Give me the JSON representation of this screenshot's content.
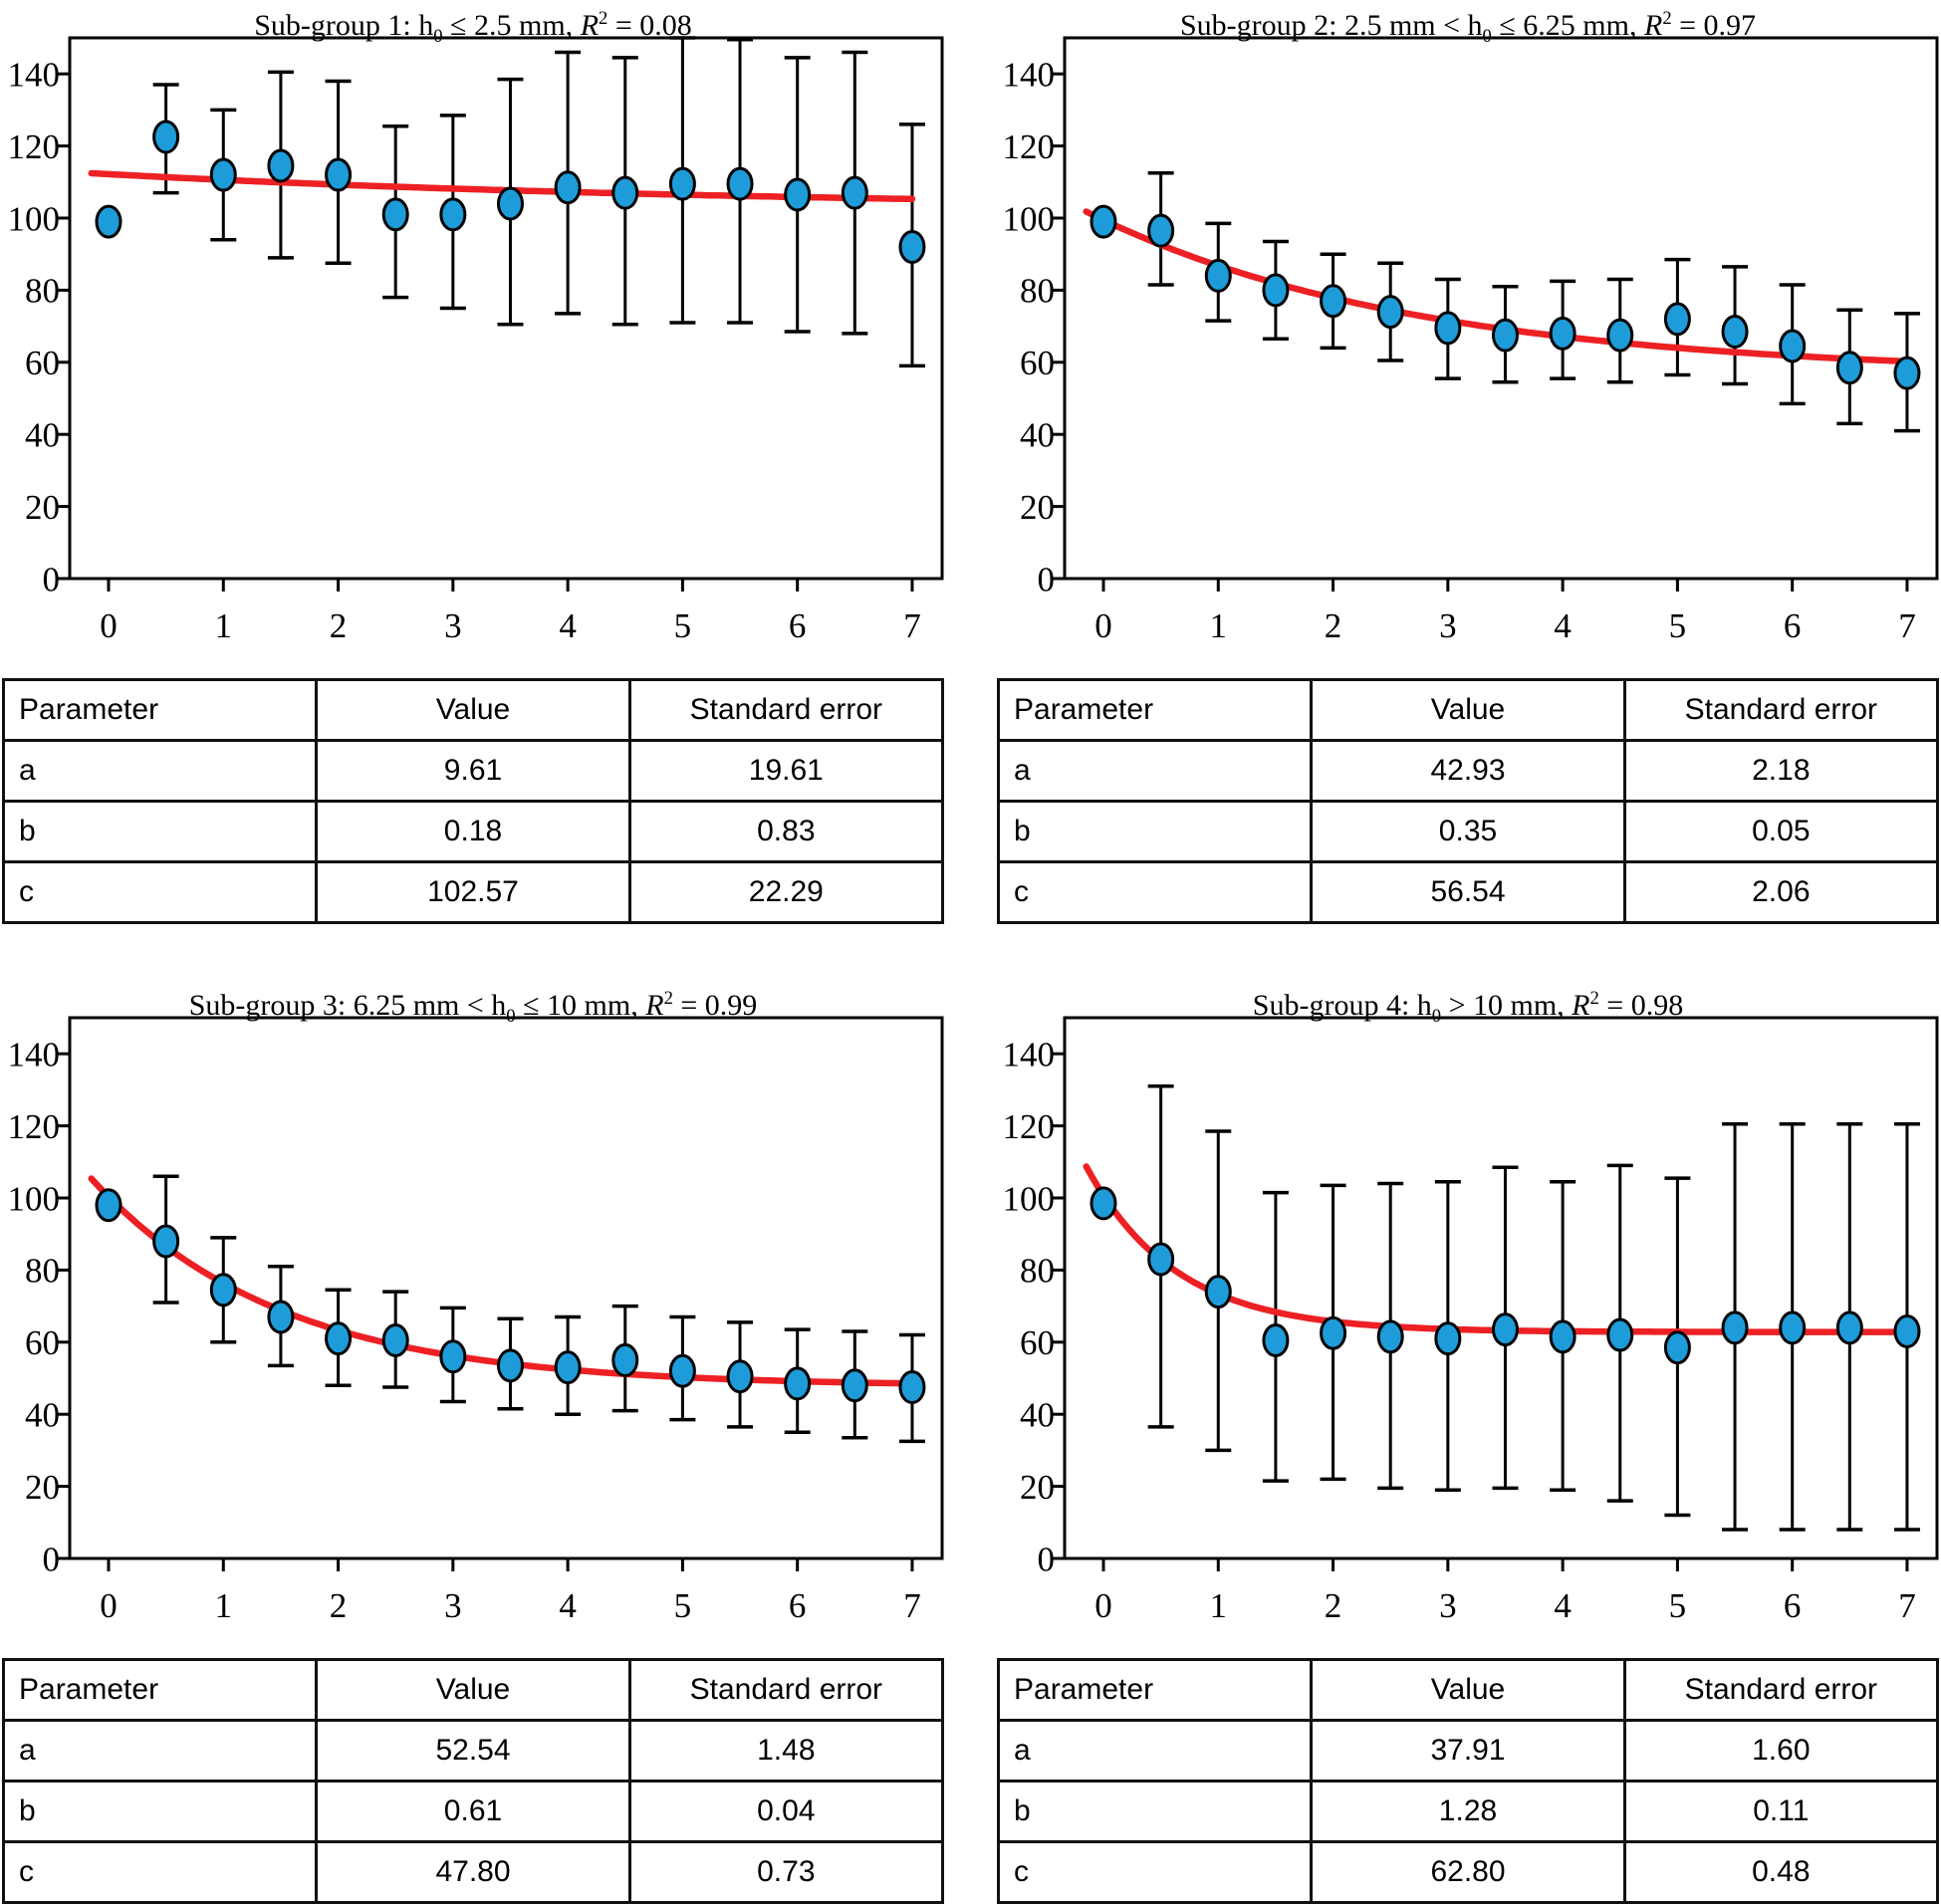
{
  "colors": {
    "marker_fill": "#1e9cd9",
    "fit_line": "#ed2024",
    "axis": "#000000"
  },
  "panels": [
    {
      "title": {
        "pre": "Sub-group 1: h",
        "sub": "0",
        "mid": " ≤ 2.5 mm, ",
        "rvar": "R",
        "sup": "2",
        "post": " = 0.08"
      },
      "table": {
        "headers": [
          "Parameter",
          "Value",
          "Standard error"
        ],
        "rows": [
          {
            "param": "a",
            "value": "9.61",
            "se": "19.61"
          },
          {
            "param": "b",
            "value": "0.18",
            "se": "0.83"
          },
          {
            "param": "c",
            "value": "102.57",
            "se": "22.29"
          }
        ]
      }
    },
    {
      "title": {
        "pre": "Sub-group 2: 2.5 mm < h",
        "sub": "0",
        "mid": " ≤ 6.25 mm, ",
        "rvar": "R",
        "sup": "2",
        "post": " = 0.97"
      },
      "table": {
        "headers": [
          "Parameter",
          "Value",
          "Standard error"
        ],
        "rows": [
          {
            "param": "a",
            "value": "42.93",
            "se": "2.18"
          },
          {
            "param": "b",
            "value": "0.35",
            "se": "0.05"
          },
          {
            "param": "c",
            "value": "56.54",
            "se": "2.06"
          }
        ]
      }
    },
    {
      "title": {
        "pre": "Sub-group 3: 6.25 mm < h",
        "sub": "0",
        "mid": " ≤ 10 mm, ",
        "rvar": "R",
        "sup": "2",
        "post": " = 0.99"
      },
      "table": {
        "headers": [
          "Parameter",
          "Value",
          "Standard error"
        ],
        "rows": [
          {
            "param": "a",
            "value": "52.54",
            "se": "1.48"
          },
          {
            "param": "b",
            "value": "0.61",
            "se": "0.04"
          },
          {
            "param": "c",
            "value": "47.80",
            "se": "0.73"
          }
        ]
      }
    },
    {
      "title": {
        "pre": "Sub-group 4: h",
        "sub": "0",
        "mid": " > 10 mm, ",
        "rvar": "R",
        "sup": "2",
        "post": " = 0.98"
      },
      "table": {
        "headers": [
          "Parameter",
          "Value",
          "Standard error"
        ],
        "rows": [
          {
            "param": "a",
            "value": "37.91",
            "se": "1.60"
          },
          {
            "param": "b",
            "value": "1.28",
            "se": "0.11"
          },
          {
            "param": "c",
            "value": "62.80",
            "se": "0.48"
          }
        ]
      }
    }
  ],
  "chart_data": [
    {
      "type": "scatter",
      "title": "Sub-group 1: h0 ≤ 2.5 mm, R2 = 0.08",
      "xlabel": "",
      "ylabel": "",
      "xlim": [
        -0.35,
        7.3
      ],
      "ylim": [
        0,
        150
      ],
      "xticks": [
        0,
        1,
        2,
        3,
        4,
        5,
        6,
        7
      ],
      "yticks": [
        0,
        20,
        40,
        60,
        80,
        100,
        120,
        140
      ],
      "x": [
        0,
        0.5,
        1,
        1.5,
        2,
        2.5,
        3,
        3.5,
        4,
        4.5,
        5,
        5.5,
        6,
        6.5,
        7
      ],
      "values": [
        99,
        122.5,
        112,
        114.5,
        112,
        101,
        101,
        104,
        108.5,
        107,
        109.5,
        109.5,
        106.5,
        107,
        92
      ],
      "err_lo": [
        null,
        107,
        94,
        89,
        87.5,
        78,
        75,
        70.5,
        73.5,
        70.5,
        71,
        71,
        68.5,
        68,
        59
      ],
      "err_hi": [
        null,
        137,
        130,
        140.5,
        138,
        125.5,
        128.5,
        138.5,
        146,
        144.5,
        150,
        149.5,
        144.5,
        146,
        126
      ],
      "fit": {
        "model": "a*exp(-b*x)+c",
        "a": 9.61,
        "b": 0.18,
        "c": 102.57
      }
    },
    {
      "type": "scatter",
      "title": "Sub-group 2: 2.5 mm < h0 ≤ 6.25 mm, R2 = 0.97",
      "xlabel": "",
      "ylabel": "",
      "xlim": [
        -0.35,
        7.3
      ],
      "ylim": [
        0,
        150
      ],
      "xticks": [
        0,
        1,
        2,
        3,
        4,
        5,
        6,
        7
      ],
      "yticks": [
        0,
        20,
        40,
        60,
        80,
        100,
        120,
        140
      ],
      "x": [
        0,
        0.5,
        1,
        1.5,
        2,
        2.5,
        3,
        3.5,
        4,
        4.5,
        5,
        5.5,
        6,
        6.5,
        7
      ],
      "values": [
        99,
        96.5,
        84,
        80,
        77,
        74,
        69.5,
        67.5,
        68,
        67.5,
        72,
        68.5,
        64.5,
        58.5,
        57
      ],
      "err_lo": [
        null,
        81.5,
        71.5,
        66.5,
        64,
        60.5,
        55.5,
        54.5,
        55.5,
        54.5,
        56.5,
        54,
        48.5,
        43,
        41
      ],
      "err_hi": [
        null,
        112.5,
        98.5,
        93.5,
        90,
        87.5,
        83,
        81,
        82.5,
        83,
        88.5,
        86.5,
        81.5,
        74.5,
        73.5
      ],
      "fit": {
        "model": "a*exp(-b*x)+c",
        "a": 42.93,
        "b": 0.35,
        "c": 56.54
      }
    },
    {
      "type": "scatter",
      "title": "Sub-group 3: 6.25 mm < h0 ≤ 10 mm, R2 = 0.99",
      "xlabel": "",
      "ylabel": "",
      "xlim": [
        -0.35,
        7.3
      ],
      "ylim": [
        0,
        150
      ],
      "xticks": [
        0,
        1,
        2,
        3,
        4,
        5,
        6,
        7
      ],
      "yticks": [
        0,
        20,
        40,
        60,
        80,
        100,
        120,
        140
      ],
      "x": [
        0,
        0.5,
        1,
        1.5,
        2,
        2.5,
        3,
        3.5,
        4,
        4.5,
        5,
        5.5,
        6,
        6.5,
        7
      ],
      "values": [
        98,
        88,
        74.5,
        67,
        61,
        60.5,
        56,
        53.5,
        53,
        55,
        52,
        50.5,
        48.5,
        48,
        47.5
      ],
      "err_lo": [
        null,
        71,
        60,
        53.5,
        48,
        47.5,
        43.5,
        41.5,
        40,
        41,
        38.5,
        36.5,
        35,
        33.5,
        32.5
      ],
      "err_hi": [
        null,
        106,
        89,
        81,
        74.5,
        74,
        69.5,
        66.5,
        67,
        70,
        67,
        65.5,
        63.5,
        63,
        62
      ],
      "fit": {
        "model": "a*exp(-b*x)+c",
        "a": 52.54,
        "b": 0.61,
        "c": 47.8
      }
    },
    {
      "type": "scatter",
      "title": "Sub-group 4: h0 > 10 mm, R2 = 0.98",
      "xlabel": "",
      "ylabel": "",
      "xlim": [
        -0.35,
        7.3
      ],
      "ylim": [
        0,
        150
      ],
      "xticks": [
        0,
        1,
        2,
        3,
        4,
        5,
        6,
        7
      ],
      "yticks": [
        0,
        20,
        40,
        60,
        80,
        100,
        120,
        140
      ],
      "x": [
        0,
        0.5,
        1,
        1.5,
        2,
        2.5,
        3,
        3.5,
        4,
        4.5,
        5,
        5.5,
        6,
        6.5,
        7
      ],
      "values": [
        98.5,
        83,
        74,
        60.5,
        62.5,
        61.5,
        61,
        63.5,
        61.5,
        62,
        58.5,
        64,
        64,
        64,
        63
      ],
      "err_lo": [
        null,
        36.5,
        30,
        21.5,
        22,
        19.5,
        19,
        19.5,
        19,
        16,
        12,
        8,
        8,
        8,
        8
      ],
      "err_hi": [
        null,
        131,
        118.5,
        101.5,
        103.5,
        104,
        104.5,
        108.5,
        104.5,
        109,
        105.5,
        120.5,
        120.5,
        120.5,
        120.5
      ],
      "fit": {
        "model": "a*exp(-b*x)+c",
        "a": 37.91,
        "b": 1.28,
        "c": 62.8
      }
    }
  ]
}
